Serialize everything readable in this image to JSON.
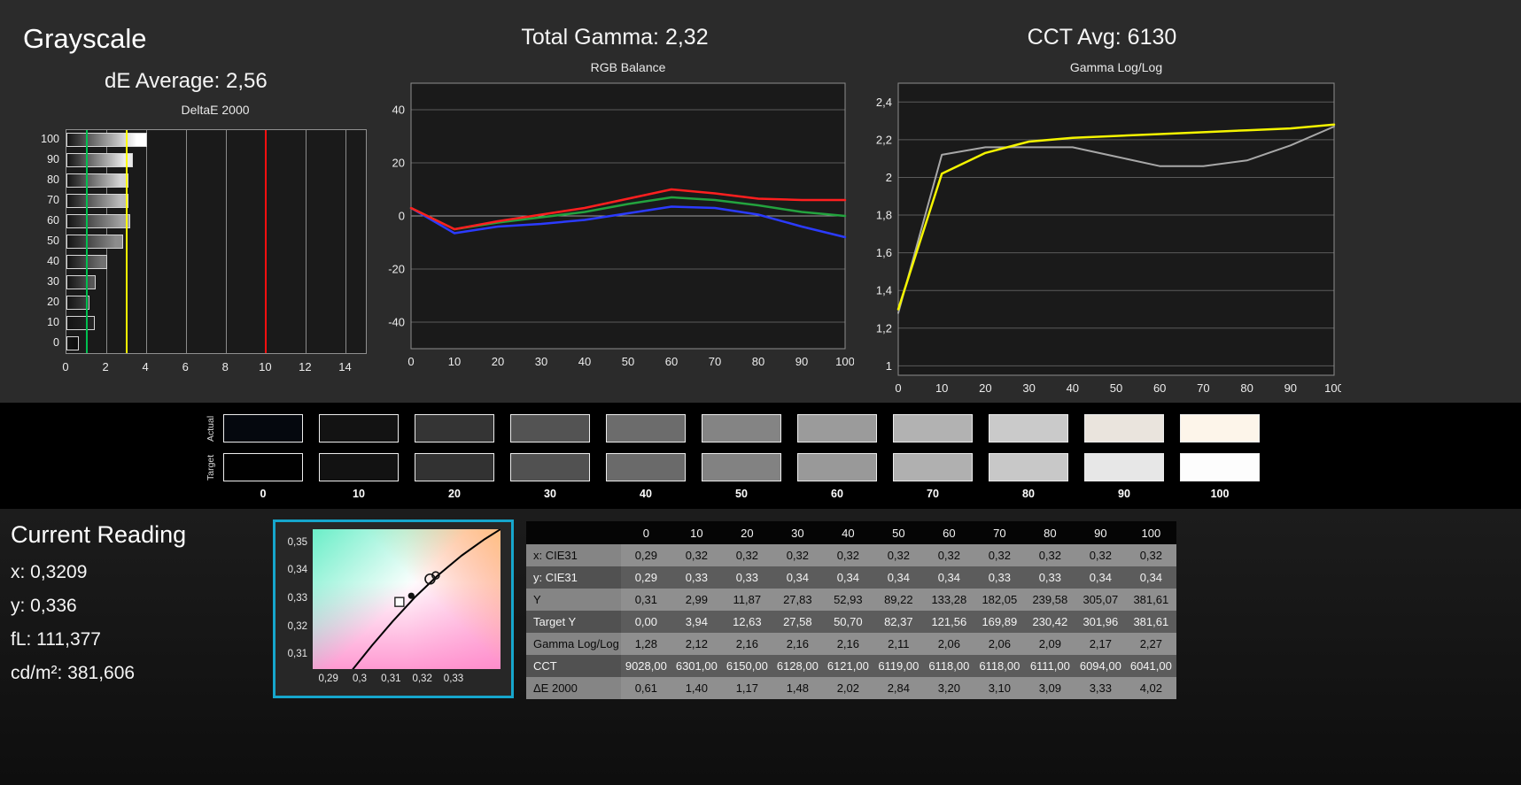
{
  "page": {
    "grayscale_title": "Grayscale",
    "de_average_label": "dE Average: 2,56",
    "total_gamma_label": "Total Gamma: 2,32",
    "cct_avg_label": "CCT Avg: 6130"
  },
  "chart_data": [
    {
      "id": "deltae2000",
      "type": "bar",
      "orientation": "horizontal",
      "title": "DeltaE 2000",
      "categories": [
        100,
        90,
        80,
        70,
        60,
        50,
        40,
        30,
        20,
        10,
        0
      ],
      "values": [
        4.02,
        3.33,
        3.09,
        3.1,
        3.2,
        2.84,
        2.02,
        1.48,
        1.17,
        1.4,
        0.61
      ],
      "xlim": [
        0,
        15
      ],
      "xticks": [
        0,
        2,
        4,
        6,
        8,
        10,
        12,
        14
      ],
      "bar_fills": [
        "#ffffff",
        "#eaeaea",
        "#d4d4d4",
        "#bcbcbc",
        "#a4a4a4",
        "#8c8c8c",
        "#717171",
        "#575757",
        "#3d3d3d",
        "#242424",
        "#0d0d0d"
      ],
      "reference_lines": [
        {
          "name": "green-target",
          "x": 1,
          "color": "#00c050"
        },
        {
          "name": "yellow-warning",
          "x": 3,
          "color": "#ffff00"
        },
        {
          "name": "red-limit",
          "x": 10,
          "color": "#ff0f0f"
        }
      ]
    },
    {
      "id": "rgb_balance",
      "type": "line",
      "title": "RGB Balance",
      "x": [
        0,
        10,
        20,
        30,
        40,
        50,
        60,
        70,
        80,
        90,
        100
      ],
      "xlim": [
        0,
        100
      ],
      "ylim": [
        -50,
        50
      ],
      "xticks": [
        0,
        10,
        20,
        30,
        40,
        50,
        60,
        70,
        80,
        90,
        100
      ],
      "yticks": [
        {
          "v": 40,
          "label": "40"
        },
        {
          "v": 20,
          "label": "20"
        },
        {
          "v": 0,
          "label": "0"
        },
        {
          "v": -20,
          "label": "-20"
        },
        {
          "v": -40,
          "label": "-40"
        }
      ],
      "series": [
        {
          "name": "blue",
          "color": "#2b3bff",
          "values": [
            3,
            -6.5,
            -4,
            -3,
            -1.5,
            1,
            3.5,
            3,
            0.5,
            -4,
            -8
          ]
        },
        {
          "name": "green",
          "color": "#23a33e",
          "values": [
            3,
            -5,
            -2.5,
            -0.5,
            1.5,
            4.5,
            7,
            6,
            4,
            1.5,
            0
          ]
        },
        {
          "name": "red",
          "color": "#ff1f1f",
          "values": [
            3,
            -5,
            -2,
            0.5,
            3,
            6.5,
            10,
            8.5,
            6.5,
            6,
            6
          ]
        }
      ]
    },
    {
      "id": "gamma_loglog",
      "type": "line",
      "title": "Gamma Log/Log",
      "x": [
        0,
        10,
        20,
        30,
        40,
        50,
        60,
        70,
        80,
        90,
        100
      ],
      "xlim": [
        0,
        100
      ],
      "ylim": [
        0.95,
        2.5
      ],
      "xticks": [
        0,
        10,
        20,
        30,
        40,
        50,
        60,
        70,
        80,
        90,
        100
      ],
      "yticks": [
        {
          "v": 2.4,
          "label": "2,4"
        },
        {
          "v": 2.2,
          "label": "2,2"
        },
        {
          "v": 2.0,
          "label": "2"
        },
        {
          "v": 1.8,
          "label": "1,8"
        },
        {
          "v": 1.6,
          "label": "1,6"
        },
        {
          "v": 1.4,
          "label": "1,4"
        },
        {
          "v": 1.2,
          "label": "1,2"
        },
        {
          "v": 1.0,
          "label": "1"
        }
      ],
      "series": [
        {
          "name": "measured-gamma",
          "color": "#a8a8a8",
          "width": 2,
          "values": [
            1.28,
            2.12,
            2.16,
            2.16,
            2.16,
            2.11,
            2.06,
            2.06,
            2.09,
            2.17,
            2.27
          ]
        },
        {
          "name": "target-gamma",
          "color": "#f5f500",
          "width": 2.5,
          "values": [
            1.3,
            2.02,
            2.13,
            2.19,
            2.21,
            2.22,
            2.23,
            2.24,
            2.25,
            2.26,
            2.28
          ]
        }
      ]
    }
  ],
  "swatches": {
    "row_labels": [
      "Actual",
      "Target"
    ],
    "column_labels": [
      "0",
      "10",
      "20",
      "30",
      "40",
      "50",
      "60",
      "70",
      "80",
      "90",
      "100"
    ],
    "actual_colors": [
      "#05080e",
      "#131313",
      "#343434",
      "#535353",
      "#6c6c6c",
      "#848484",
      "#9b9b9b",
      "#b2b2b2",
      "#cacaca",
      "#eae4dd",
      "#fdf5ea"
    ],
    "target_colors": [
      "#010101",
      "#121212",
      "#323232",
      "#515151",
      "#6a6a6a",
      "#828282",
      "#999999",
      "#b0b0b0",
      "#c8c8c8",
      "#e7e7e7",
      "#fdfdfd"
    ]
  },
  "current_reading": {
    "title": "Current Reading",
    "lines": [
      "x: 0,3209",
      "y: 0,336",
      "fL: 111,377",
      "cd/m²: 381,606"
    ]
  },
  "cie_diagram": {
    "xlim": [
      0.285,
      0.345
    ],
    "ylim": [
      0.305,
      0.355
    ],
    "x_ticks": [
      {
        "v": 0.29,
        "label": "0,29"
      },
      {
        "v": 0.3,
        "label": "0,3"
      },
      {
        "v": 0.31,
        "label": "0,31"
      },
      {
        "v": 0.32,
        "label": "0,32"
      },
      {
        "v": 0.33,
        "label": "0,33"
      }
    ],
    "y_ticks": [
      {
        "v": 0.35,
        "label": "0,35"
      },
      {
        "v": 0.34,
        "label": "0,34"
      },
      {
        "v": 0.33,
        "label": "0,33"
      },
      {
        "v": 0.32,
        "label": "0,32"
      },
      {
        "v": 0.31,
        "label": "0,31"
      }
    ],
    "locus": [
      [
        0.2975,
        0.3045
      ],
      [
        0.304,
        0.3135
      ],
      [
        0.3105,
        0.322
      ],
      [
        0.3175,
        0.3305
      ],
      [
        0.325,
        0.3385
      ],
      [
        0.3325,
        0.3455
      ],
      [
        0.34,
        0.3515
      ],
      [
        0.345,
        0.355
      ]
    ],
    "markers": [
      {
        "type": "square",
        "x": 0.3127,
        "y": 0.329
      },
      {
        "type": "dot",
        "x": 0.3165,
        "y": 0.3312
      },
      {
        "type": "circle",
        "x": 0.3225,
        "y": 0.3372,
        "r": 5.5
      },
      {
        "type": "circle",
        "x": 0.3243,
        "y": 0.3385,
        "r": 4
      }
    ]
  },
  "table": {
    "columns": [
      "",
      "0",
      "10",
      "20",
      "30",
      "40",
      "50",
      "60",
      "70",
      "80",
      "90",
      "100"
    ],
    "rows": [
      {
        "label": "x: CIE31",
        "values": [
          "0,29",
          "0,32",
          "0,32",
          "0,32",
          "0,32",
          "0,32",
          "0,32",
          "0,32",
          "0,32",
          "0,32",
          "0,32"
        ]
      },
      {
        "label": "y: CIE31",
        "values": [
          "0,29",
          "0,33",
          "0,33",
          "0,34",
          "0,34",
          "0,34",
          "0,34",
          "0,33",
          "0,33",
          "0,34",
          "0,34"
        ]
      },
      {
        "label": "Y",
        "values": [
          "0,31",
          "2,99",
          "11,87",
          "27,83",
          "52,93",
          "89,22",
          "133,28",
          "182,05",
          "239,58",
          "305,07",
          "381,61"
        ]
      },
      {
        "label": "Target Y",
        "values": [
          "0,00",
          "3,94",
          "12,63",
          "27,58",
          "50,70",
          "82,37",
          "121,56",
          "169,89",
          "230,42",
          "301,96",
          "381,61"
        ]
      },
      {
        "label": "Gamma Log/Log",
        "values": [
          "1,28",
          "2,12",
          "2,16",
          "2,16",
          "2,16",
          "2,11",
          "2,06",
          "2,06",
          "2,09",
          "2,17",
          "2,27"
        ]
      },
      {
        "label": "CCT",
        "values": [
          "9028,00",
          "6301,00",
          "6150,00",
          "6128,00",
          "6121,00",
          "6119,00",
          "6118,00",
          "6118,00",
          "6111,00",
          "6094,00",
          "6041,00"
        ]
      },
      {
        "label": "ΔE 2000",
        "values": [
          "0,61",
          "1,40",
          "1,17",
          "1,48",
          "2,02",
          "2,84",
          "3,20",
          "3,10",
          "3,09",
          "3,33",
          "4,02"
        ]
      }
    ]
  }
}
